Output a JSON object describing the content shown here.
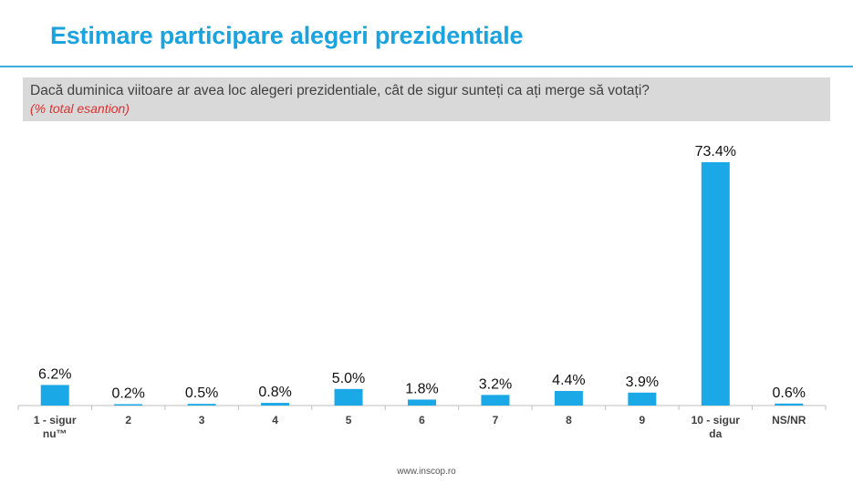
{
  "header": {
    "title": "Estimare participare alegeri prezidentiale"
  },
  "question": {
    "text": "Dacă duminica viitoare ar avea loc alegeri prezidentiale, cât de sigur sunteți ca ați merge să votați?",
    "note": "(% total esantion)"
  },
  "footer": {
    "source": "www.inscop.ro"
  },
  "colors": {
    "bar": "#1aa8e6",
    "accent": "#1aa3df"
  },
  "chart_data": {
    "type": "bar",
    "categories": [
      [
        "1 - sigur",
        "nu™"
      ],
      [
        "2"
      ],
      [
        "3"
      ],
      [
        "4"
      ],
      [
        "5"
      ],
      [
        "6"
      ],
      [
        "7"
      ],
      [
        "8"
      ],
      [
        "9"
      ],
      [
        "10 - sigur",
        "da"
      ],
      [
        "NS/NR"
      ]
    ],
    "values": [
      6.2,
      0.2,
      0.5,
      0.8,
      5.0,
      1.8,
      3.2,
      4.4,
      3.9,
      73.4,
      0.6
    ],
    "data_labels": [
      "6.2%",
      "0.2%",
      "0.5%",
      "0.8%",
      "5.0%",
      "1.8%",
      "3.2%",
      "4.4%",
      "3.9%",
      "73.4%",
      "0.6%"
    ],
    "title": "",
    "xlabel": "",
    "ylabel": "",
    "ylim": [
      0,
      73.4
    ],
    "grid": false,
    "legend": "none"
  }
}
